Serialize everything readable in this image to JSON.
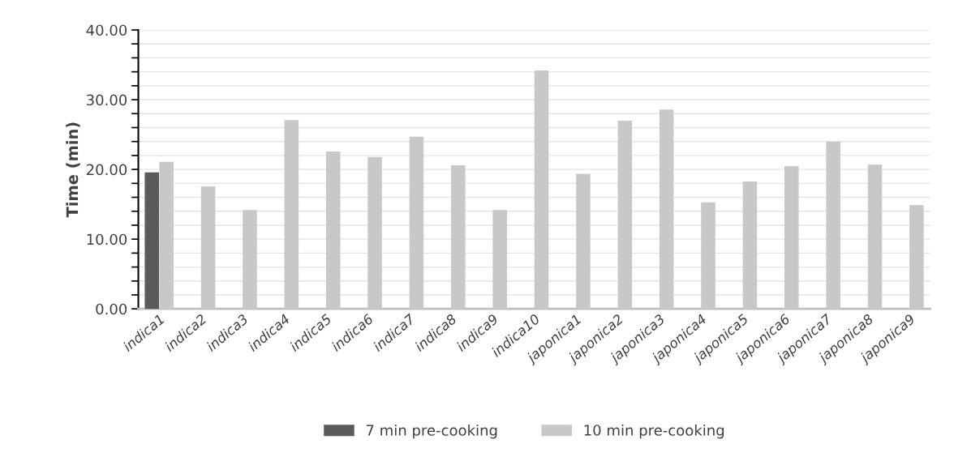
{
  "chart_data": {
    "type": "bar",
    "ylabel": "Time (min)",
    "categories": [
      "indica1",
      "indica2",
      "indica3",
      "indica4",
      "indica5",
      "indica6",
      "indica7",
      "indica8",
      "indica9",
      "indica10",
      "japonica1",
      "japonica2",
      "japonica3",
      "japonica4",
      "japonica5",
      "japonica6",
      "japonica7",
      "japonica8",
      "japonica9"
    ],
    "series": [
      {
        "name": "7 min pre-cooking",
        "color": "#5a5a5a",
        "values": [
          19.5,
          null,
          null,
          null,
          null,
          null,
          null,
          null,
          null,
          null,
          null,
          null,
          null,
          null,
          null,
          null,
          null,
          null,
          null
        ]
      },
      {
        "name": "10 min pre-cooking",
        "color": "#c8c8c8",
        "values": [
          21.0,
          17.5,
          14.1,
          27.0,
          22.5,
          21.7,
          24.6,
          20.5,
          14.1,
          34.1,
          19.3,
          26.9,
          28.5,
          15.2,
          18.2,
          20.4,
          23.9,
          20.6,
          14.8
        ]
      }
    ],
    "ylim": [
      0,
      40
    ],
    "yticks": [
      {
        "value": 0,
        "label": "0.00"
      },
      {
        "value": 2,
        "label": null
      },
      {
        "value": 4,
        "label": null
      },
      {
        "value": 6,
        "label": null
      },
      {
        "value": 8,
        "label": null
      },
      {
        "value": 10,
        "label": "10.00"
      },
      {
        "value": 12,
        "label": null
      },
      {
        "value": 14,
        "label": null
      },
      {
        "value": 16,
        "label": null
      },
      {
        "value": 18,
        "label": null
      },
      {
        "value": 20,
        "label": "20.00"
      },
      {
        "value": 22,
        "label": null
      },
      {
        "value": 24,
        "label": null
      },
      {
        "value": 26,
        "label": null
      },
      {
        "value": 28,
        "label": null
      },
      {
        "value": 30,
        "label": "30.00"
      },
      {
        "value": 32,
        "label": null
      },
      {
        "value": 34,
        "label": null
      },
      {
        "value": 36,
        "label": null
      },
      {
        "value": 38,
        "label": null
      },
      {
        "value": 40,
        "label": "40.00"
      }
    ],
    "grid": "y",
    "legend": "bottom"
  }
}
